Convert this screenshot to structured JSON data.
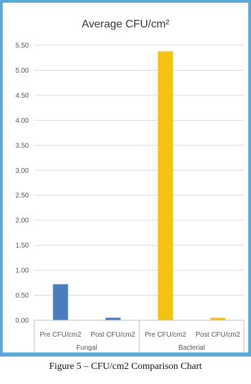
{
  "caption": "Figure 5 – CFU/cm2 Comparison Chart",
  "colors": {
    "fungal": "#4a7cc0",
    "bacterial": "#f5c211",
    "frame": "#5aa9d6",
    "grid": "#d9d9d9"
  },
  "chart_data": {
    "type": "bar",
    "title": "Average CFU/cm²",
    "groups": [
      "Fungal",
      "Bacterial"
    ],
    "categories": [
      "Pre CFU/cm2",
      "Post CFU/cm2",
      "Pre CFU/cm2",
      "Post CFU/cm2"
    ],
    "values": [
      0.72,
      0.05,
      5.38,
      0.05
    ],
    "ylim": [
      0,
      5.5
    ],
    "yticks": [
      "0.00",
      "0.50",
      "1.00",
      "1.50",
      "2.00",
      "2.50",
      "3.00",
      "3.50",
      "4.00",
      "4.50",
      "5.00",
      "5.50"
    ],
    "grid": true,
    "xlabel": "",
    "ylabel": ""
  }
}
